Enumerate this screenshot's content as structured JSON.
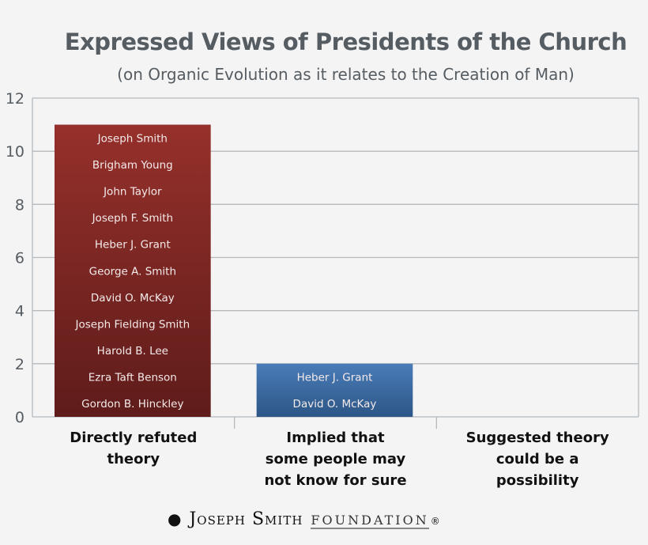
{
  "chart_data": {
    "type": "bar",
    "title": "Expressed Views of Presidents of the Church",
    "subtitle": "(on Organic Evolution as it relates to the Creation of Man)",
    "categories": [
      "Directly refuted theory",
      "Implied that some people may not know for sure",
      "Suggested theory could be a possibility"
    ],
    "category_lines": [
      [
        "Directly refuted",
        "theory"
      ],
      [
        "Implied that",
        "some people may",
        "not know for sure"
      ],
      [
        "Suggested theory",
        "could be a",
        "possibility"
      ]
    ],
    "values": [
      11,
      2,
      0
    ],
    "bar_colors": [
      "#8e2a26",
      "#3f70a8",
      "#8e2a26"
    ],
    "bar_labels": [
      [
        "Joseph Smith",
        "Brigham Young",
        "John Taylor",
        "Joseph F. Smith",
        "Heber J. Grant",
        "George A. Smith",
        "David O. McKay",
        "Joseph Fielding Smith",
        "Harold B. Lee",
        "Ezra Taft Benson",
        "Gordon B. Hinckley"
      ],
      [
        "Heber J. Grant",
        "David O. McKay"
      ],
      []
    ],
    "ylim": [
      0,
      12
    ],
    "yticks": [
      0,
      2,
      4,
      6,
      8,
      10,
      12
    ],
    "grid": true,
    "legend": "none"
  },
  "footer": {
    "logo_main": "Joseph Smith",
    "logo_sub": "Foundation",
    "logo_mark": "®"
  }
}
